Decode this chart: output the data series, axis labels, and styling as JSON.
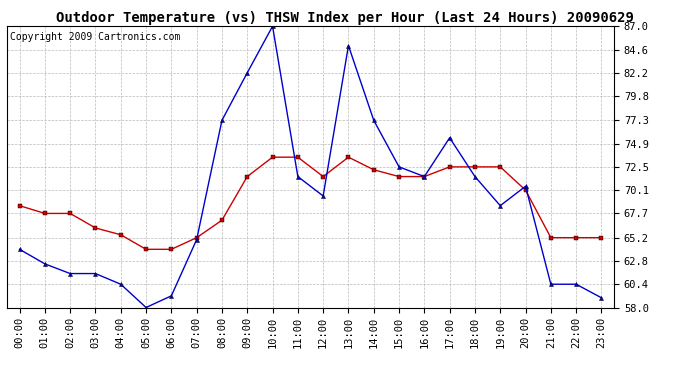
{
  "title": "Outdoor Temperature (vs) THSW Index per Hour (Last 24 Hours) 20090629",
  "copyright": "Copyright 2009 Cartronics.com",
  "hours": [
    "00:00",
    "01:00",
    "02:00",
    "03:00",
    "04:00",
    "05:00",
    "06:00",
    "07:00",
    "08:00",
    "09:00",
    "10:00",
    "11:00",
    "12:00",
    "13:00",
    "14:00",
    "15:00",
    "16:00",
    "17:00",
    "18:00",
    "19:00",
    "20:00",
    "21:00",
    "22:00",
    "23:00"
  ],
  "temp": [
    68.5,
    67.7,
    67.7,
    66.2,
    65.5,
    64.0,
    64.0,
    65.2,
    67.0,
    71.5,
    73.5,
    73.5,
    71.5,
    73.5,
    72.2,
    71.5,
    71.5,
    72.5,
    72.5,
    72.5,
    70.1,
    65.2,
    65.2,
    65.2
  ],
  "thsw": [
    64.0,
    62.5,
    61.5,
    61.5,
    60.4,
    58.0,
    59.2,
    65.0,
    77.3,
    82.2,
    87.0,
    71.5,
    69.5,
    85.0,
    77.3,
    72.5,
    71.5,
    75.5,
    71.5,
    68.5,
    70.5,
    60.4,
    60.4,
    59.0
  ],
  "ylim": [
    58.0,
    87.0
  ],
  "yticks": [
    58.0,
    60.4,
    62.8,
    65.2,
    67.7,
    70.1,
    72.5,
    74.9,
    77.3,
    79.8,
    82.2,
    84.6,
    87.0
  ],
  "temp_color": "#cc0000",
  "thsw_color": "#0000cc",
  "bg_color": "#ffffff",
  "grid_color": "#aaaaaa",
  "title_fontsize": 10,
  "copyright_fontsize": 7,
  "tick_fontsize": 7.5
}
